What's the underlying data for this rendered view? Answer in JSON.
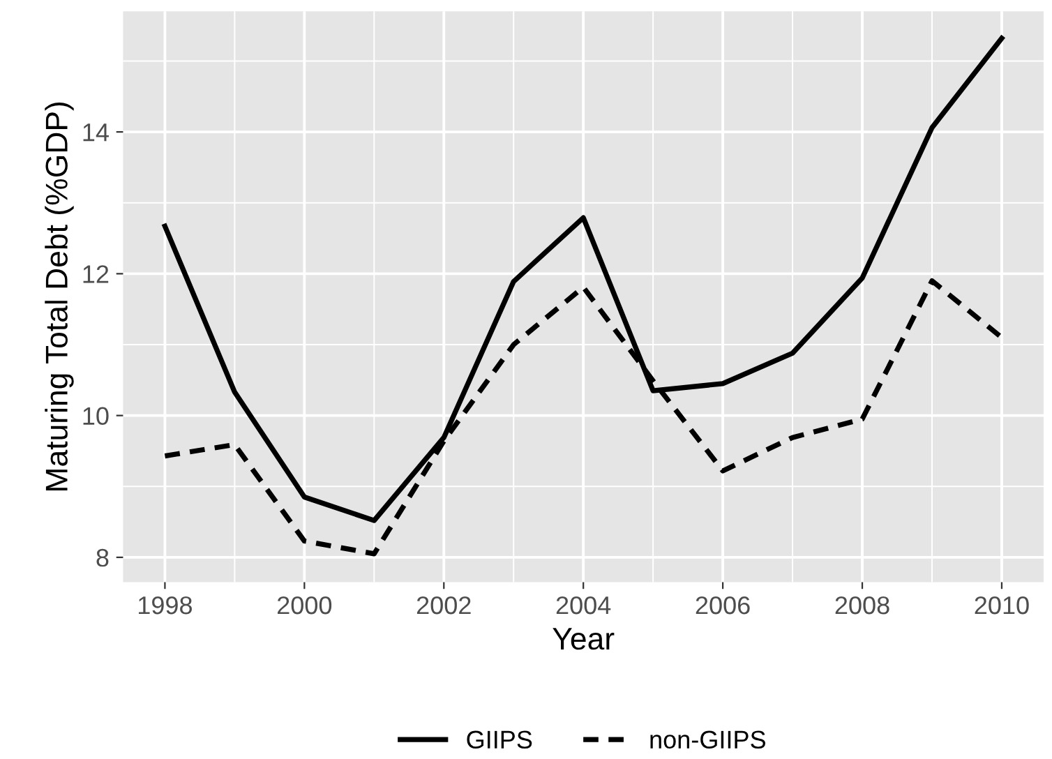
{
  "chart_data": {
    "type": "line",
    "xlabel": "Year",
    "ylabel": "Maturing Total Debt (%GDP)",
    "x": [
      1998,
      1999,
      2000,
      2001,
      2002,
      2003,
      2004,
      2005,
      2006,
      2007,
      2008,
      2009,
      2010
    ],
    "series": [
      {
        "name": "GIIPS",
        "color": "#000000",
        "line_style": "solid",
        "values": [
          12.67,
          10.33,
          8.85,
          8.52,
          9.69,
          11.89,
          12.79,
          10.35,
          10.45,
          10.88,
          11.94,
          14.06,
          15.32
        ]
      },
      {
        "name": "non-GIIPS",
        "color": "#000000",
        "line_style": "dashed",
        "values": [
          9.43,
          9.59,
          8.23,
          8.05,
          9.64,
          11.0,
          11.81,
          10.49,
          9.22,
          9.69,
          9.95,
          11.9,
          11.1
        ]
      }
    ],
    "xlim": [
      1997.4,
      2010.6
    ],
    "ylim": [
      7.65,
      15.7
    ],
    "xticks": [
      1998,
      2000,
      2002,
      2004,
      2006,
      2008,
      2010
    ],
    "yticks": [
      8,
      10,
      12,
      14
    ],
    "grid": true,
    "legend": "bottom",
    "marker": "none"
  }
}
